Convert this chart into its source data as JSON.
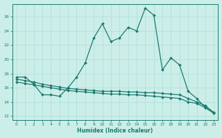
{
  "xlabel": "Humidex (Indice chaleur)",
  "background_color": "#cceee8",
  "line_color": "#1a7a6e",
  "grid_color": "#aadddd",
  "ylim": [
    11.5,
    27.8
  ],
  "xlim": [
    -0.5,
    23.5
  ],
  "yticks": [
    12,
    14,
    16,
    18,
    20,
    22,
    24,
    26
  ],
  "xticks": [
    0,
    1,
    2,
    3,
    4,
    5,
    6,
    7,
    8,
    9,
    10,
    11,
    12,
    13,
    14,
    15,
    16,
    17,
    18,
    19,
    20,
    21,
    22,
    23
  ],
  "line1_x": [
    0,
    1,
    2,
    3,
    4,
    5,
    6,
    7,
    8,
    9,
    10,
    11,
    12,
    13,
    14,
    15,
    16,
    17,
    18,
    19,
    20,
    21,
    22,
    23
  ],
  "line1_y": [
    17.5,
    17.5,
    16.5,
    15.0,
    15.0,
    14.8,
    16.0,
    17.5,
    19.5,
    23.0,
    25.0,
    22.5,
    23.0,
    24.5,
    24.0,
    27.2,
    26.2,
    18.5,
    20.2,
    19.2,
    15.5,
    14.5,
    13.2,
    12.4
  ],
  "line2_x": [
    0,
    1,
    2,
    3,
    4,
    5,
    6,
    7,
    8,
    9,
    10,
    11,
    12,
    13,
    14,
    15,
    16,
    17,
    18,
    19,
    20,
    21,
    22,
    23
  ],
  "line2_y": [
    17.2,
    17.0,
    16.8,
    16.5,
    16.3,
    16.1,
    15.9,
    15.8,
    15.7,
    15.6,
    15.5,
    15.5,
    15.5,
    15.4,
    15.4,
    15.3,
    15.3,
    15.2,
    15.1,
    15.0,
    14.5,
    14.0,
    13.5,
    12.5
  ],
  "line3_x": [
    0,
    1,
    2,
    3,
    4,
    5,
    6,
    7,
    8,
    9,
    10,
    11,
    12,
    13,
    14,
    15,
    16,
    17,
    18,
    19,
    20,
    21,
    22,
    23
  ],
  "line3_y": [
    16.8,
    16.6,
    16.4,
    16.2,
    16.0,
    15.8,
    15.6,
    15.5,
    15.4,
    15.3,
    15.2,
    15.1,
    15.1,
    15.0,
    15.0,
    14.9,
    14.8,
    14.7,
    14.6,
    14.5,
    14.0,
    13.8,
    13.2,
    12.5
  ]
}
